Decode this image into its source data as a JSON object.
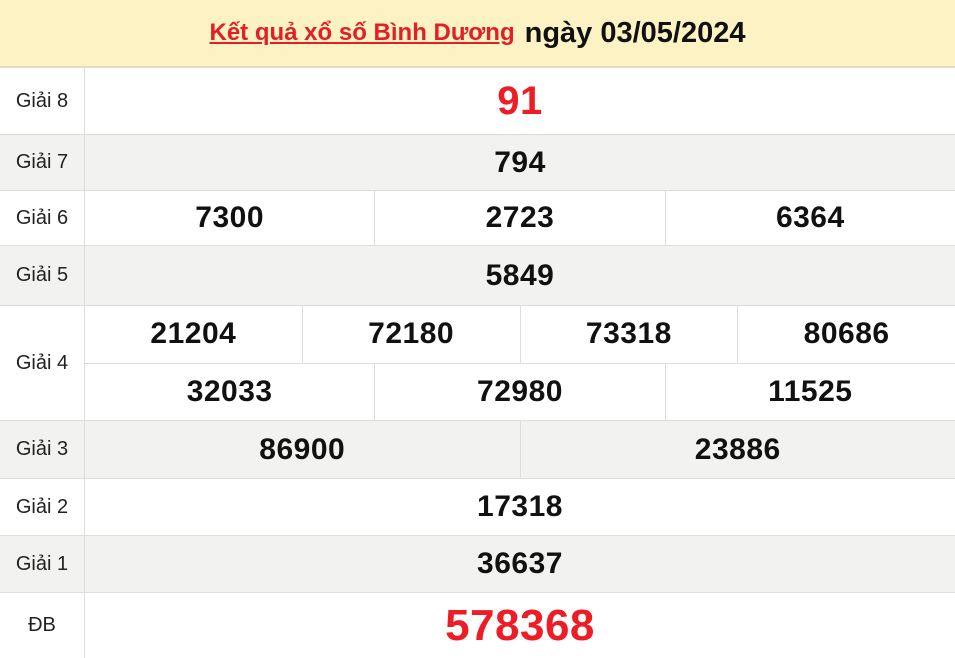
{
  "header": {
    "title_link": "Kết quả xổ số Bình Dương",
    "date_text": "ngày 03/05/2024"
  },
  "table": {
    "rows": [
      {
        "label": "Giải 8",
        "highlight": true,
        "values": [
          [
            "91"
          ]
        ]
      },
      {
        "label": "Giải 7",
        "highlight": false,
        "values": [
          [
            "794"
          ]
        ]
      },
      {
        "label": "Giải 6",
        "highlight": false,
        "values": [
          [
            "7300",
            "2723",
            "6364"
          ]
        ]
      },
      {
        "label": "Giải 5",
        "highlight": false,
        "values": [
          [
            "5849"
          ]
        ]
      },
      {
        "label": "Giải 4",
        "highlight": false,
        "values": [
          [
            "21204",
            "72180",
            "73318",
            "80686"
          ],
          [
            "32033",
            "72980",
            "11525"
          ]
        ]
      },
      {
        "label": "Giải 3",
        "highlight": false,
        "values": [
          [
            "86900",
            "23886"
          ]
        ]
      },
      {
        "label": "Giải 2",
        "highlight": false,
        "values": [
          [
            "17318"
          ]
        ]
      },
      {
        "label": "Giải 1",
        "highlight": false,
        "values": [
          [
            "36637"
          ]
        ]
      },
      {
        "label": "ĐB",
        "highlight": true,
        "values": [
          [
            "578368"
          ]
        ]
      }
    ]
  },
  "colors": {
    "header_bg": "#fcf2c3",
    "row_alt_bg": "#f2f2f0",
    "highlight_red": "#ee1c25",
    "title_red": "#e21f26",
    "border": "#dddddd",
    "number_text": "#111111",
    "label_text": "#222222"
  }
}
